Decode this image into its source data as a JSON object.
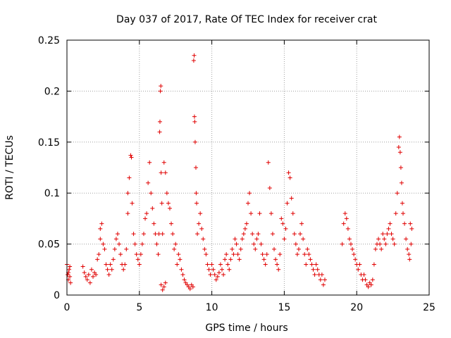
{
  "chart_data": {
    "type": "scatter",
    "title": "Day 037 of 2017, Rate Of TEC Index for receiver crat",
    "xlabel": "GPS time / hours",
    "ylabel": "ROTI / TECUs",
    "xlim": [
      0,
      25
    ],
    "ylim": [
      0,
      0.25
    ],
    "x_ticks": [
      0,
      5,
      10,
      15,
      20,
      25
    ],
    "x_tick_labels": [
      "0",
      "5",
      "10",
      "15",
      "20",
      "25"
    ],
    "y_ticks": [
      0,
      0.05,
      0.1,
      0.15,
      0.2,
      0.25
    ],
    "y_tick_labels": [
      "0",
      "0.05",
      "0.1",
      "0.15",
      "0.2",
      "0.25"
    ],
    "grid": true,
    "marker": "plus",
    "color": "#e00000",
    "series": [
      {
        "points": [
          [
            0.0,
            0.03
          ],
          [
            0.05,
            0.02
          ],
          [
            0.1,
            0.015
          ],
          [
            0.15,
            0.025
          ],
          [
            0.2,
            0.018
          ],
          [
            0.25,
            0.012
          ],
          [
            0.1,
            0.022
          ],
          [
            0.2,
            0.028
          ],
          [
            1.1,
            0.028
          ],
          [
            1.2,
            0.022
          ],
          [
            1.3,
            0.018
          ],
          [
            1.4,
            0.015
          ],
          [
            1.5,
            0.02
          ],
          [
            1.6,
            0.012
          ],
          [
            1.7,
            0.025
          ],
          [
            1.8,
            0.018
          ],
          [
            1.9,
            0.022
          ],
          [
            2.0,
            0.02
          ],
          [
            2.1,
            0.035
          ],
          [
            2.2,
            0.04
          ],
          [
            2.3,
            0.055
          ],
          [
            2.3,
            0.065
          ],
          [
            2.4,
            0.07
          ],
          [
            2.5,
            0.05
          ],
          [
            2.6,
            0.045
          ],
          [
            2.7,
            0.03
          ],
          [
            2.8,
            0.025
          ],
          [
            2.9,
            0.02
          ],
          [
            3.0,
            0.03
          ],
          [
            3.1,
            0.025
          ],
          [
            3.2,
            0.035
          ],
          [
            3.3,
            0.045
          ],
          [
            3.4,
            0.055
          ],
          [
            3.5,
            0.06
          ],
          [
            3.6,
            0.05
          ],
          [
            3.7,
            0.04
          ],
          [
            3.8,
            0.03
          ],
          [
            3.9,
            0.025
          ],
          [
            4.0,
            0.03
          ],
          [
            4.1,
            0.045
          ],
          [
            4.2,
            0.08
          ],
          [
            4.2,
            0.1
          ],
          [
            4.3,
            0.115
          ],
          [
            4.4,
            0.137
          ],
          [
            4.45,
            0.135
          ],
          [
            4.5,
            0.09
          ],
          [
            4.6,
            0.06
          ],
          [
            4.7,
            0.05
          ],
          [
            4.8,
            0.04
          ],
          [
            4.9,
            0.035
          ],
          [
            5.0,
            0.03
          ],
          [
            5.1,
            0.04
          ],
          [
            5.2,
            0.05
          ],
          [
            5.3,
            0.06
          ],
          [
            5.4,
            0.075
          ],
          [
            5.5,
            0.08
          ],
          [
            5.6,
            0.11
          ],
          [
            5.7,
            0.13
          ],
          [
            5.8,
            0.1
          ],
          [
            5.9,
            0.085
          ],
          [
            6.0,
            0.07
          ],
          [
            6.1,
            0.06
          ],
          [
            6.2,
            0.05
          ],
          [
            6.3,
            0.04
          ],
          [
            6.35,
            0.06
          ],
          [
            6.4,
            0.16
          ],
          [
            6.42,
            0.17
          ],
          [
            6.45,
            0.2
          ],
          [
            6.48,
            0.205
          ],
          [
            6.5,
            0.12
          ],
          [
            6.55,
            0.09
          ],
          [
            6.6,
            0.06
          ],
          [
            6.7,
            0.13
          ],
          [
            6.8,
            0.12
          ],
          [
            6.9,
            0.1
          ],
          [
            7.0,
            0.09
          ],
          [
            7.1,
            0.085
          ],
          [
            7.2,
            0.07
          ],
          [
            7.3,
            0.06
          ],
          [
            7.4,
            0.045
          ],
          [
            7.5,
            0.05
          ],
          [
            7.6,
            0.03
          ],
          [
            7.7,
            0.04
          ],
          [
            6.5,
            0.01
          ],
          [
            6.6,
            0.005
          ],
          [
            6.7,
            0.008
          ],
          [
            6.8,
            0.012
          ],
          [
            7.8,
            0.035
          ],
          [
            7.9,
            0.025
          ],
          [
            8.0,
            0.02
          ],
          [
            8.1,
            0.015
          ],
          [
            8.2,
            0.012
          ],
          [
            8.3,
            0.01
          ],
          [
            8.4,
            0.008
          ],
          [
            8.5,
            0.006
          ],
          [
            8.6,
            0.01
          ],
          [
            8.7,
            0.008
          ],
          [
            8.75,
            0.23
          ],
          [
            8.78,
            0.235
          ],
          [
            8.8,
            0.175
          ],
          [
            8.82,
            0.17
          ],
          [
            8.85,
            0.15
          ],
          [
            8.9,
            0.125
          ],
          [
            8.92,
            0.1
          ],
          [
            8.95,
            0.09
          ],
          [
            9.0,
            0.06
          ],
          [
            9.1,
            0.07
          ],
          [
            9.2,
            0.08
          ],
          [
            9.3,
            0.065
          ],
          [
            9.4,
            0.055
          ],
          [
            9.5,
            0.045
          ],
          [
            9.6,
            0.04
          ],
          [
            9.7,
            0.03
          ],
          [
            9.8,
            0.025
          ],
          [
            9.9,
            0.02
          ],
          [
            10.0,
            0.03
          ],
          [
            10.1,
            0.025
          ],
          [
            10.2,
            0.02
          ],
          [
            10.3,
            0.015
          ],
          [
            10.4,
            0.018
          ],
          [
            10.5,
            0.022
          ],
          [
            10.6,
            0.03
          ],
          [
            10.7,
            0.025
          ],
          [
            10.8,
            0.02
          ],
          [
            10.9,
            0.035
          ],
          [
            11.0,
            0.04
          ],
          [
            11.1,
            0.03
          ],
          [
            11.2,
            0.025
          ],
          [
            11.3,
            0.035
          ],
          [
            11.4,
            0.045
          ],
          [
            11.5,
            0.04
          ],
          [
            11.6,
            0.055
          ],
          [
            11.7,
            0.05
          ],
          [
            11.8,
            0.04
          ],
          [
            11.9,
            0.035
          ],
          [
            12.0,
            0.045
          ],
          [
            12.1,
            0.055
          ],
          [
            12.2,
            0.06
          ],
          [
            12.3,
            0.065
          ],
          [
            12.4,
            0.07
          ],
          [
            12.5,
            0.09
          ],
          [
            12.6,
            0.1
          ],
          [
            12.7,
            0.08
          ],
          [
            12.8,
            0.06
          ],
          [
            12.9,
            0.05
          ],
          [
            13.0,
            0.045
          ],
          [
            13.1,
            0.055
          ],
          [
            13.2,
            0.06
          ],
          [
            13.3,
            0.08
          ],
          [
            13.4,
            0.05
          ],
          [
            13.5,
            0.04
          ],
          [
            13.6,
            0.035
          ],
          [
            13.7,
            0.03
          ],
          [
            13.8,
            0.04
          ],
          [
            13.9,
            0.13
          ],
          [
            14.0,
            0.105
          ],
          [
            14.1,
            0.08
          ],
          [
            14.2,
            0.06
          ],
          [
            14.3,
            0.045
          ],
          [
            14.4,
            0.035
          ],
          [
            14.5,
            0.03
          ],
          [
            14.6,
            0.025
          ],
          [
            14.7,
            0.04
          ],
          [
            14.8,
            0.075
          ],
          [
            14.9,
            0.07
          ],
          [
            15.0,
            0.055
          ],
          [
            15.1,
            0.065
          ],
          [
            15.2,
            0.09
          ],
          [
            15.3,
            0.12
          ],
          [
            15.4,
            0.115
          ],
          [
            15.5,
            0.095
          ],
          [
            15.6,
            0.08
          ],
          [
            15.7,
            0.06
          ],
          [
            15.8,
            0.05
          ],
          [
            15.9,
            0.04
          ],
          [
            16.0,
            0.045
          ],
          [
            16.1,
            0.06
          ],
          [
            16.2,
            0.07
          ],
          [
            16.3,
            0.055
          ],
          [
            16.4,
            0.04
          ],
          [
            16.5,
            0.03
          ],
          [
            16.6,
            0.045
          ],
          [
            16.7,
            0.04
          ],
          [
            16.8,
            0.035
          ],
          [
            16.9,
            0.03
          ],
          [
            17.0,
            0.025
          ],
          [
            17.1,
            0.02
          ],
          [
            17.2,
            0.03
          ],
          [
            17.3,
            0.025
          ],
          [
            17.4,
            0.02
          ],
          [
            17.5,
            0.015
          ],
          [
            17.6,
            0.02
          ],
          [
            17.7,
            0.01
          ],
          [
            17.8,
            0.015
          ],
          [
            19.0,
            0.05
          ],
          [
            19.1,
            0.07
          ],
          [
            19.2,
            0.08
          ],
          [
            19.3,
            0.075
          ],
          [
            19.4,
            0.065
          ],
          [
            19.5,
            0.055
          ],
          [
            19.6,
            0.05
          ],
          [
            19.7,
            0.045
          ],
          [
            19.8,
            0.04
          ],
          [
            19.9,
            0.035
          ],
          [
            20.0,
            0.03
          ],
          [
            20.1,
            0.025
          ],
          [
            20.2,
            0.03
          ],
          [
            20.3,
            0.02
          ],
          [
            20.4,
            0.015
          ],
          [
            20.5,
            0.02
          ],
          [
            20.6,
            0.015
          ],
          [
            20.7,
            0.01
          ],
          [
            20.8,
            0.008
          ],
          [
            20.9,
            0.012
          ],
          [
            21.0,
            0.01
          ],
          [
            21.1,
            0.015
          ],
          [
            21.2,
            0.03
          ],
          [
            21.3,
            0.045
          ],
          [
            21.4,
            0.05
          ],
          [
            21.5,
            0.055
          ],
          [
            21.6,
            0.05
          ],
          [
            21.7,
            0.045
          ],
          [
            21.8,
            0.06
          ],
          [
            21.9,
            0.055
          ],
          [
            22.0,
            0.05
          ],
          [
            22.1,
            0.06
          ],
          [
            22.2,
            0.065
          ],
          [
            22.3,
            0.07
          ],
          [
            22.4,
            0.06
          ],
          [
            22.5,
            0.055
          ],
          [
            22.6,
            0.05
          ],
          [
            22.7,
            0.08
          ],
          [
            22.8,
            0.1
          ],
          [
            22.9,
            0.145
          ],
          [
            22.95,
            0.155
          ],
          [
            23.0,
            0.14
          ],
          [
            23.05,
            0.125
          ],
          [
            23.1,
            0.11
          ],
          [
            23.15,
            0.09
          ],
          [
            23.2,
            0.08
          ],
          [
            23.3,
            0.07
          ],
          [
            23.4,
            0.055
          ],
          [
            23.5,
            0.045
          ],
          [
            23.6,
            0.04
          ],
          [
            23.65,
            0.035
          ],
          [
            23.7,
            0.07
          ],
          [
            23.75,
            0.05
          ],
          [
            23.8,
            0.065
          ]
        ]
      }
    ]
  }
}
